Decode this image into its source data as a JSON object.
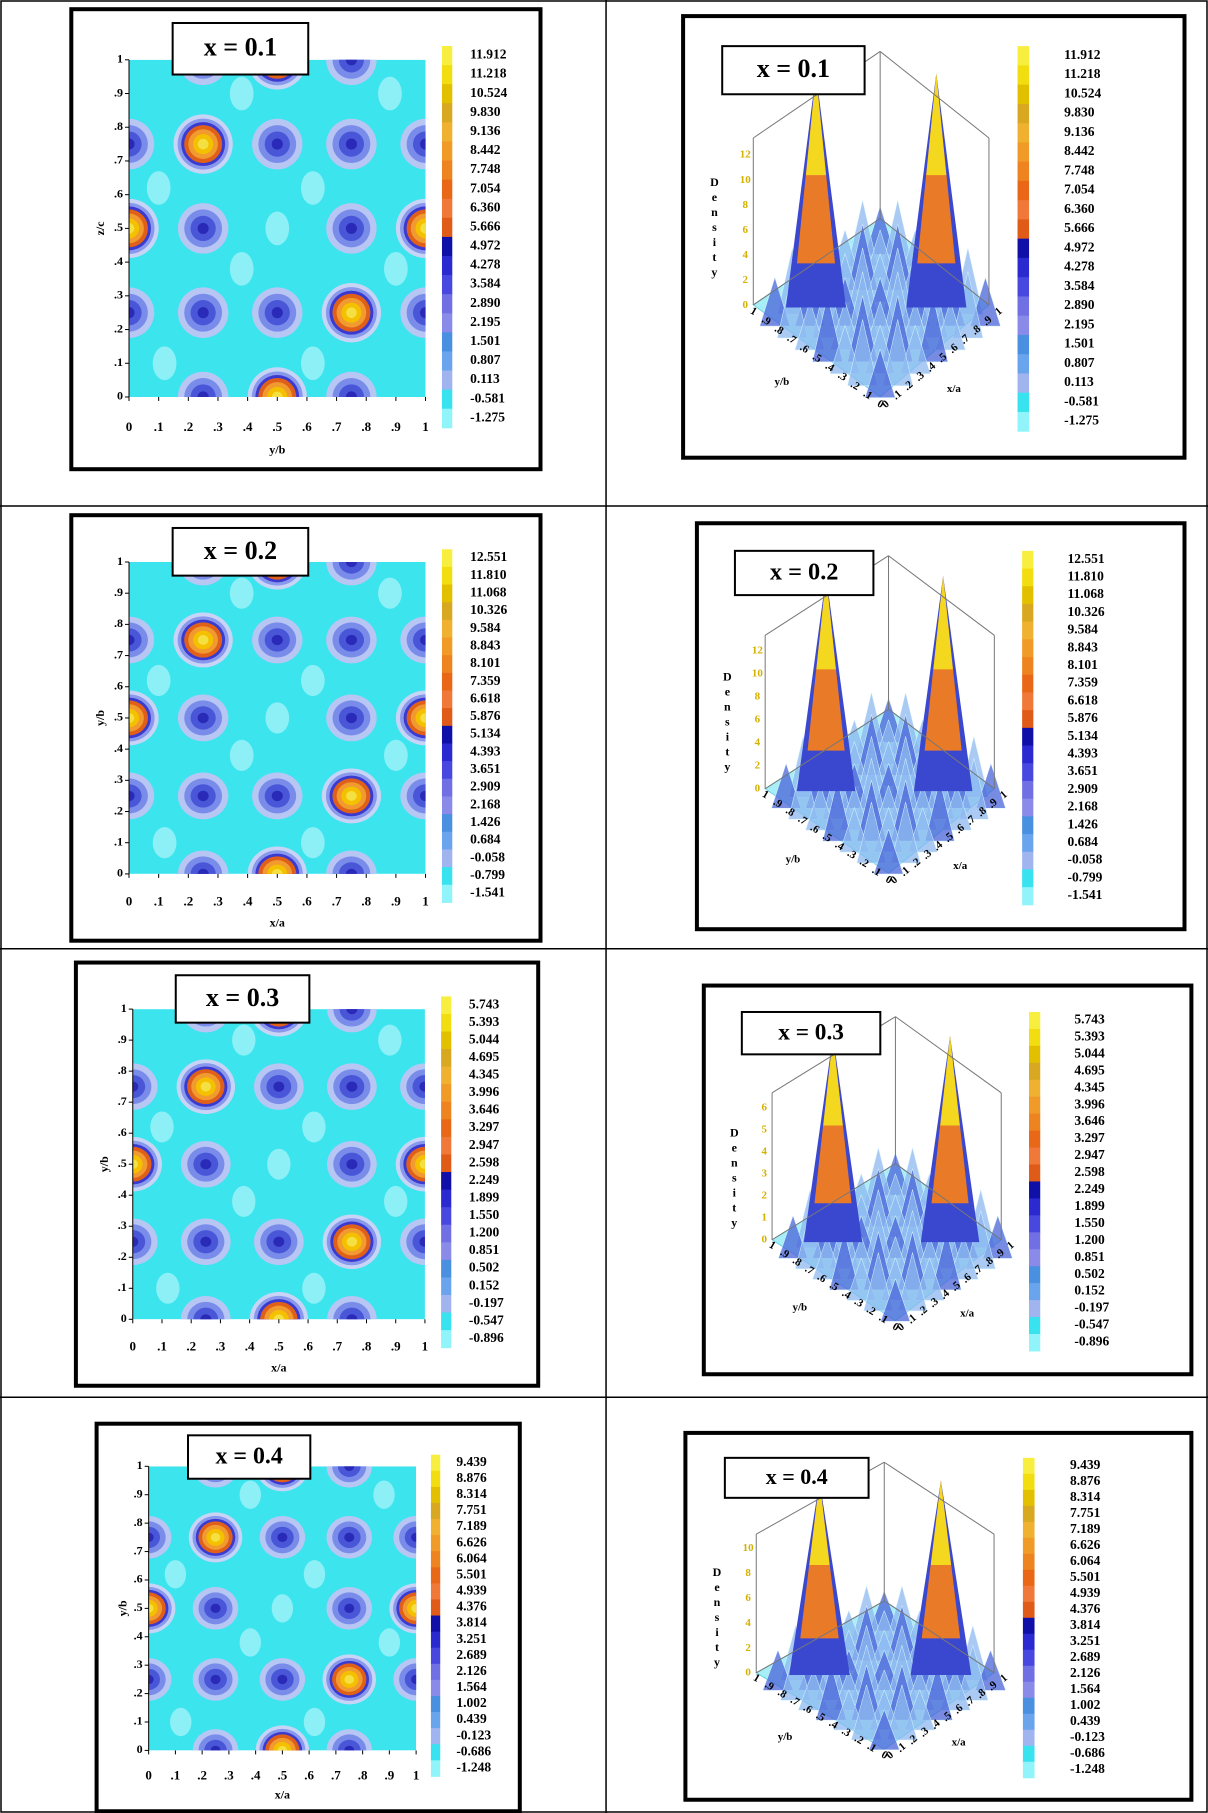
{
  "axis_ticks": [
    "0",
    ".1",
    ".2",
    ".3",
    ".4",
    ".5",
    ".6",
    ".7",
    ".8",
    ".9",
    "1"
  ],
  "rows": [
    {
      "label": "x = 0.1",
      "contour": {
        "x_label": "y/b",
        "y_label": "z/c"
      },
      "surface": {
        "z_label": "Density",
        "z_ticks": [
          0,
          2,
          4,
          6,
          8,
          10,
          12
        ],
        "x_label": "x/a",
        "y_label": "y/b"
      },
      "colorbar": [
        "11.912",
        "11.218",
        "10.524",
        "9.830",
        "9.136",
        "8.442",
        "7.748",
        "7.054",
        "6.360",
        "5.666",
        "4.972",
        "4.278",
        "3.584",
        "2.890",
        "2.195",
        "1.501",
        "0.807",
        "0.113",
        "-0.581",
        "-1.275"
      ]
    },
    {
      "label": "x = 0.2",
      "contour": {
        "x_label": "x/a",
        "y_label": "y/b"
      },
      "surface": {
        "z_label": "Density",
        "z_ticks": [
          0,
          2,
          4,
          6,
          8,
          10,
          12
        ],
        "x_label": "x/a",
        "y_label": "y/b"
      },
      "colorbar": [
        "12.551",
        "11.810",
        "11.068",
        "10.326",
        "9.584",
        "8.843",
        "8.101",
        "7.359",
        "6.618",
        "5.876",
        "5.134",
        "4.393",
        "3.651",
        "2.909",
        "2.168",
        "1.426",
        "0.684",
        "-0.058",
        "-0.799",
        "-1.541"
      ]
    },
    {
      "label": "x = 0.3",
      "contour": {
        "x_label": "x/a",
        "y_label": "y/b"
      },
      "surface": {
        "z_label": "Density",
        "z_ticks": [
          0,
          1,
          2,
          3,
          4,
          5,
          6
        ],
        "x_label": "x/a",
        "y_label": "y/b"
      },
      "colorbar": [
        "5.743",
        "5.393",
        "5.044",
        "4.695",
        "4.345",
        "3.996",
        "3.646",
        "3.297",
        "2.947",
        "2.598",
        "2.249",
        "1.899",
        "1.550",
        "1.200",
        "0.851",
        "0.502",
        "0.152",
        "-0.197",
        "-0.547",
        "-0.896"
      ]
    },
    {
      "label": "x = 0.4",
      "contour": {
        "x_label": "x/a",
        "y_label": "y/b"
      },
      "surface": {
        "z_label": "Density",
        "z_ticks": [
          0,
          2,
          4,
          6,
          8,
          10
        ],
        "x_label": "x/a",
        "y_label": "y/b"
      },
      "colorbar": [
        "9.439",
        "8.876",
        "8.314",
        "7.751",
        "7.189",
        "6.626",
        "6.064",
        "5.501",
        "4.939",
        "4.376",
        "3.814",
        "3.251",
        "2.689",
        "2.126",
        "1.564",
        "1.002",
        "0.439",
        "-0.123",
        "-0.686",
        "-1.248"
      ]
    }
  ]
}
